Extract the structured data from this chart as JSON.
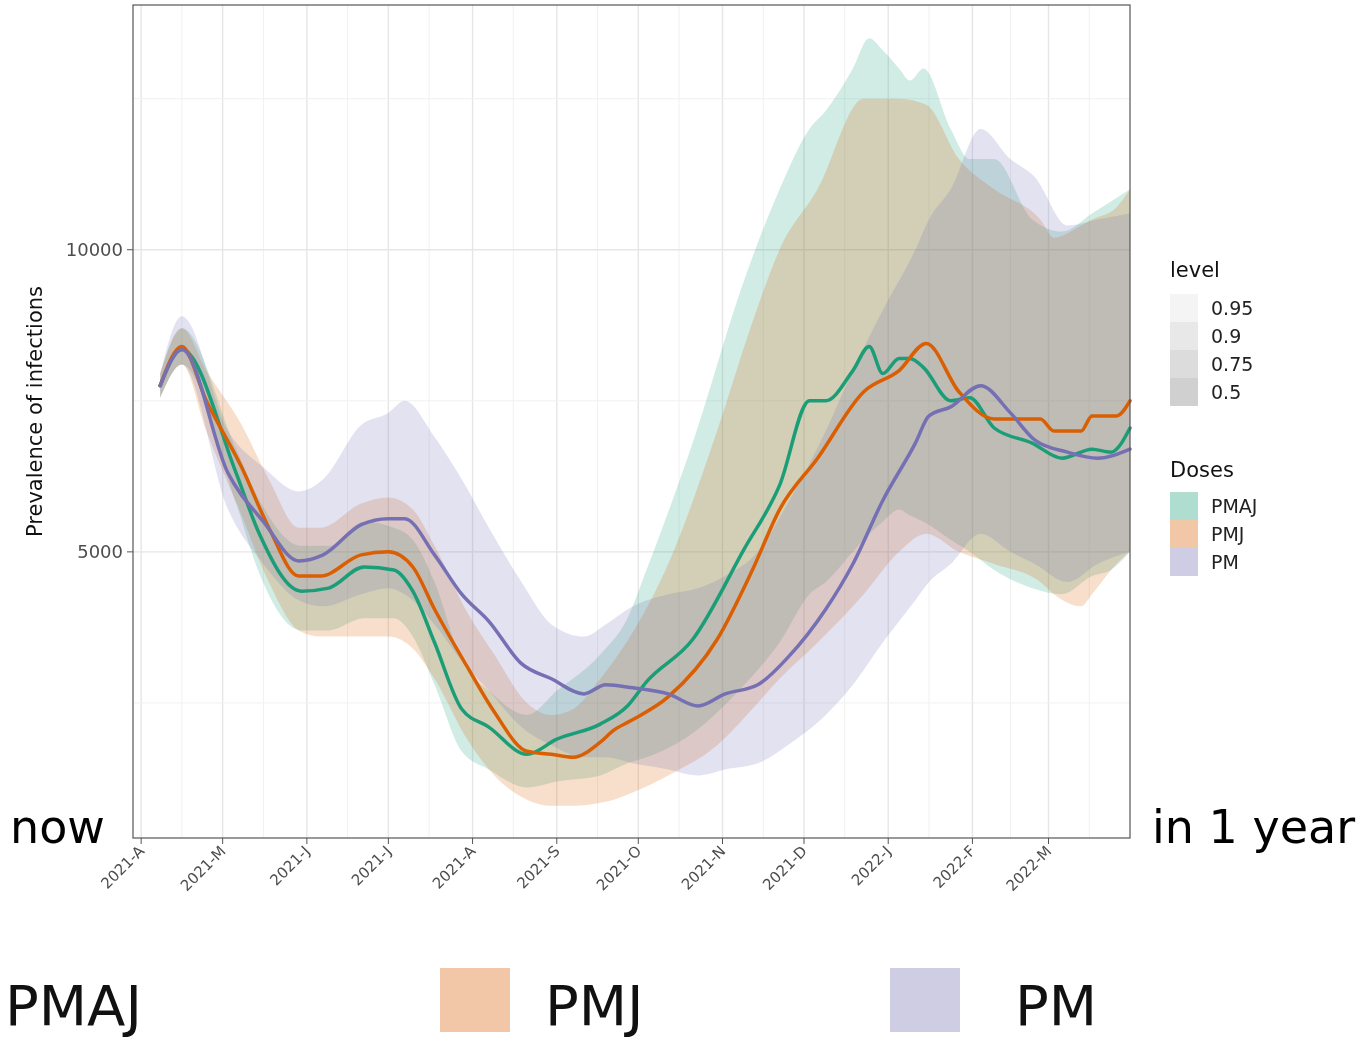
{
  "chart_data": {
    "type": "line",
    "ylabel": "Prevalence of infections",
    "legend_title": "Doses",
    "legend": "right",
    "grid": true,
    "line_style": "solid",
    "marker": "none",
    "xlim": [
      "2021-03-29",
      "2022-03-31"
    ],
    "xticks": [
      {
        "value": "2021-04-01",
        "label": "2021-A"
      },
      {
        "value": "2021-05-01",
        "label": "2021-M"
      },
      {
        "value": "2021-06-01",
        "label": "2021-J"
      },
      {
        "value": "2021-07-01",
        "label": "2021-J"
      },
      {
        "value": "2021-08-01",
        "label": "2021-A"
      },
      {
        "value": "2021-09-01",
        "label": "2021-S"
      },
      {
        "value": "2021-10-01",
        "label": "2021-O"
      },
      {
        "value": "2021-11-01",
        "label": "2021-N"
      },
      {
        "value": "2021-12-01",
        "label": "2021-D"
      },
      {
        "value": "2022-01-01",
        "label": "2022-J"
      },
      {
        "value": "2022-02-01",
        "label": "2022-F"
      },
      {
        "value": "2022-03-01",
        "label": "2022-M"
      },
      {
        "value": "2021-04-16",
        "label": null
      },
      {
        "value": "2021-05-16",
        "label": null
      },
      {
        "value": "2021-06-16",
        "label": null
      },
      {
        "value": "2021-07-16",
        "label": null
      },
      {
        "value": "2021-08-16",
        "label": null
      },
      {
        "value": "2021-09-16",
        "label": null
      },
      {
        "value": "2021-10-16",
        "label": null
      },
      {
        "value": "2021-11-16",
        "label": null
      },
      {
        "value": "2021-12-16",
        "label": null
      },
      {
        "value": "2022-01-16",
        "label": null
      },
      {
        "value": "2022-02-15",
        "label": null
      },
      {
        "value": "2022-03-16",
        "label": null
      }
    ],
    "ylim": [
      265,
      14050
    ],
    "yticks": [
      5000,
      10000,
      {
        "value": 2500,
        "label": null
      },
      {
        "value": 7500,
        "label": null
      },
      {
        "value": 12500,
        "label": null
      }
    ],
    "annotations": [
      "now",
      "in 1 year",
      "level",
      "0.95",
      "0.9",
      "0.75",
      "0.5"
    ],
    "series": [
      {
        "name": "PMAJ",
        "color": "#1b9e77",
        "x": [
          "2021-04-08",
          "2021-04-16",
          "2021-05-06",
          "2021-05-14",
          "2021-05-30",
          "2021-06-09",
          "2021-06-22",
          "2021-07-03",
          "2021-07-10",
          "2021-07-18",
          "2021-07-28",
          "2021-08-07",
          "2021-08-21",
          "2021-09-01",
          "2021-09-17",
          "2021-09-27",
          "2021-10-04",
          "2021-10-21",
          "2021-11-09",
          "2021-11-22",
          "2021-12-03",
          "2021-12-09",
          "2021-12-19",
          "2021-12-25",
          "2021-12-30",
          "2022-01-05",
          "2022-01-09",
          "2022-01-14",
          "2022-01-24",
          "2022-01-31",
          "2022-02-09",
          "2022-02-23",
          "2022-03-06",
          "2022-03-17",
          "2022-03-24",
          "2022-03-31"
        ],
        "values": [
          7750,
          8350,
          6300,
          5350,
          4350,
          4400,
          4750,
          4700,
          4350,
          3500,
          2400,
          2100,
          1650,
          1900,
          2150,
          2450,
          2850,
          3550,
          5050,
          6100,
          7500,
          7500,
          8000,
          8400,
          7950,
          8200,
          8200,
          8050,
          7500,
          7550,
          7050,
          6800,
          6550,
          6700,
          6650,
          7050
        ],
        "lower": [
          7550,
          8100,
          5800,
          4700,
          3700,
          3700,
          3900,
          3900,
          3600,
          2800,
          1700,
          1400,
          1100,
          1200,
          1300,
          1500,
          1600,
          2000,
          2800,
          3500,
          4300,
          4500,
          5000,
          5300,
          5500,
          5700,
          5600,
          5500,
          5200,
          5000,
          4700,
          4400,
          4300,
          4600,
          4700,
          5000
        ],
        "upper": [
          7950,
          8700,
          6700,
          5900,
          5100,
          5100,
          5500,
          5400,
          5200,
          4500,
          3200,
          2700,
          2300,
          2700,
          3300,
          3900,
          4700,
          6800,
          9500,
          11000,
          12000,
          12300,
          13000,
          13500,
          13300,
          13000,
          12800,
          13000,
          12000,
          11500,
          11500,
          10500,
          10300,
          10600,
          10800,
          11000
        ]
      },
      {
        "name": "PMJ",
        "color": "#d95f02",
        "x": [
          "2021-04-08",
          "2021-04-16",
          "2021-04-25",
          "2021-05-08",
          "2021-05-18",
          "2021-05-29",
          "2021-06-06",
          "2021-06-21",
          "2021-07-01",
          "2021-07-10",
          "2021-07-18",
          "2021-07-30",
          "2021-08-09",
          "2021-08-21",
          "2021-08-30",
          "2021-09-07",
          "2021-09-17",
          "2021-09-22",
          "2021-09-28",
          "2021-10-12",
          "2021-10-30",
          "2021-11-12",
          "2021-11-22",
          "2021-12-06",
          "2021-12-23",
          "2022-01-05",
          "2022-01-15",
          "2022-01-27",
          "2022-02-09",
          "2022-02-26",
          "2022-03-03",
          "2022-03-13",
          "2022-03-17",
          "2022-03-26",
          "2022-03-31"
        ],
        "values": [
          7750,
          8400,
          7500,
          6400,
          5400,
          4600,
          4600,
          4950,
          5000,
          4750,
          4050,
          3100,
          2350,
          1700,
          1650,
          1600,
          1850,
          2050,
          2200,
          2600,
          3550,
          4700,
          5700,
          6550,
          7650,
          8000,
          8450,
          7650,
          7200,
          7200,
          7000,
          7000,
          7250,
          7250,
          7500
        ],
        "lower": [
          7550,
          8100,
          7000,
          5600,
          4500,
          3700,
          3600,
          3600,
          3600,
          3400,
          2900,
          1900,
          1300,
          900,
          800,
          800,
          850,
          900,
          1000,
          1300,
          1800,
          2400,
          2900,
          3500,
          4300,
          5000,
          5300,
          5000,
          4800,
          4500,
          4300,
          4100,
          4300,
          4800,
          5000
        ],
        "upper": [
          7950,
          8700,
          8000,
          7100,
          6200,
          5400,
          5400,
          5800,
          5900,
          5700,
          5100,
          4000,
          3300,
          2500,
          2300,
          2400,
          2900,
          3200,
          3600,
          4800,
          7000,
          8800,
          10000,
          11000,
          12500,
          12500,
          12400,
          11500,
          11000,
          10500,
          10200,
          10400,
          10500,
          10700,
          11000
        ]
      },
      {
        "name": "PM",
        "color": "#7570b3",
        "x": [
          "2021-04-08",
          "2021-04-16",
          "2021-05-03",
          "2021-05-16",
          "2021-05-29",
          "2021-06-07",
          "2021-06-21",
          "2021-07-01",
          "2021-07-07",
          "2021-07-18",
          "2021-07-28",
          "2021-08-07",
          "2021-08-19",
          "2021-08-30",
          "2021-09-11",
          "2021-09-19",
          "2021-09-29",
          "2021-10-12",
          "2021-10-23",
          "2021-11-02",
          "2021-11-14",
          "2021-11-25",
          "2021-12-09",
          "2021-12-19",
          "2021-12-30",
          "2022-01-11",
          "2022-01-16",
          "2022-01-24",
          "2022-02-04",
          "2022-02-15",
          "2022-02-24",
          "2022-03-08",
          "2022-03-19",
          "2022-03-31"
        ],
        "values": [
          7750,
          8350,
          6300,
          5500,
          4850,
          4950,
          5450,
          5550,
          5550,
          4950,
          4300,
          3850,
          3150,
          2900,
          2650,
          2800,
          2750,
          2650,
          2450,
          2650,
          2800,
          3250,
          4050,
          4800,
          5850,
          6800,
          7250,
          7400,
          7750,
          7300,
          6850,
          6650,
          6550,
          6700
        ],
        "lower": [
          7550,
          8100,
          5700,
          4800,
          4200,
          4100,
          4300,
          4400,
          4300,
          3800,
          3200,
          2700,
          2100,
          1800,
          1600,
          1600,
          1500,
          1400,
          1300,
          1400,
          1500,
          1800,
          2300,
          2800,
          3500,
          4200,
          4500,
          4800,
          5300,
          5000,
          4800,
          4500,
          4800,
          5000
        ],
        "upper": [
          7950,
          8900,
          7000,
          6400,
          6000,
          6200,
          7100,
          7300,
          7500,
          6900,
          6200,
          5400,
          4500,
          3800,
          3600,
          3800,
          4100,
          4300,
          4400,
          4600,
          5000,
          5800,
          7000,
          8000,
          9000,
          10000,
          10500,
          11000,
          12000,
          11500,
          11200,
          10400,
          10500,
          10600
        ]
      }
    ]
  }
}
